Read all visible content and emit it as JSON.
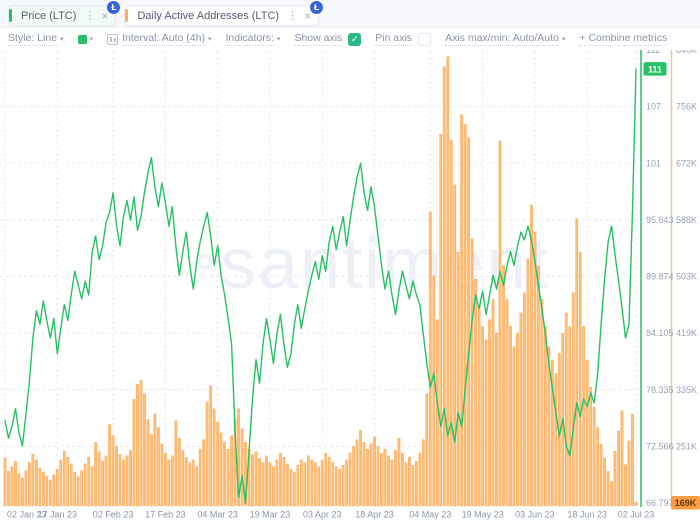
{
  "colors": {
    "green": "#26c164",
    "orangeAccent": "#ffa95c",
    "blueBadge": "#3a63d8",
    "checkbox": "#2bb886",
    "bar": "#ffbd72",
    "barEdge": "#f3a45c",
    "orangeAxisLine": "#f7c489",
    "greenAxisLine": "#26c164",
    "greenBadge": "#26c164",
    "orangeBadge": "#ff9d45",
    "orangeBadgeText": "#5b3a10",
    "axisText": "#98a1b3",
    "xText": "#8b95a8",
    "grid": "#e7ebf2",
    "watermark": "#edf0f6"
  },
  "tabs": [
    {
      "label": "Price (LTC)",
      "menu_icon": "⋮",
      "close_icon": "×",
      "logo": "Ł"
    },
    {
      "label": "Daily Active Addresses (LTC)",
      "menu_icon": "⋮",
      "close_icon": "×",
      "logo": "Ł"
    }
  ],
  "toolbar": {
    "style_label": "Style: Line",
    "interval_label": "Interval: Auto (4h)",
    "indicators_label": "Indicators:",
    "show_axis_label": "Show axis",
    "pin_axis_label": "Pin axis",
    "axis_maxmin_label": "Axis max/min: Auto/Auto",
    "combine_metrics_label": "+ Combine metrics",
    "caret": "▾",
    "check_icon": "✓"
  },
  "watermark": "santiment",
  "chart_data": {
    "type": "line+bar",
    "x_start": "02 Jan 23",
    "x_end": "02 Jul 23",
    "days": 182,
    "x_labels": [
      {
        "day": 0,
        "label": "02 Jan 23"
      },
      {
        "day": 15,
        "label": "17 Jan 23"
      },
      {
        "day": 31,
        "label": "02 Feb 23"
      },
      {
        "day": 46,
        "label": "17 Feb 23"
      },
      {
        "day": 61,
        "label": "04 Mar 23"
      },
      {
        "day": 76,
        "label": "19 Mar 23"
      },
      {
        "day": 91,
        "label": "03 Apr 23"
      },
      {
        "day": 106,
        "label": "18 Apr 23"
      },
      {
        "day": 122,
        "label": "04 May 23"
      },
      {
        "day": 137,
        "label": "19 May 23"
      },
      {
        "day": 152,
        "label": "03 Jun 23"
      },
      {
        "day": 167,
        "label": "18 Jun 23"
      },
      {
        "day": 181,
        "label": "02 Jul 23"
      }
    ],
    "series": [
      {
        "name": "Price (LTC)",
        "type": "line",
        "axis": {
          "max": 112.951,
          "min": 66.797,
          "labels": [
            "112",
            "107",
            "101",
            "95.643",
            "89.874",
            "84.105",
            "78.335",
            "72.566",
            "66.797"
          ],
          "last_value_badge": "111",
          "last_value": 111
        },
        "values": [
          75.2,
          73.4,
          74.6,
          76.4,
          74.0,
          72.6,
          75.8,
          79.2,
          83.6,
          86.4,
          85.0,
          87.4,
          85.4,
          83.6,
          85.6,
          82.0,
          84.6,
          87.0,
          85.4,
          88.0,
          90.4,
          89.0,
          87.6,
          89.4,
          88.0,
          92.4,
          94.0,
          91.6,
          93.0,
          95.4,
          96.4,
          98.4,
          95.0,
          93.0,
          96.0,
          97.6,
          95.6,
          98.0,
          94.6,
          96.0,
          98.4,
          100.4,
          102.0,
          99.0,
          97.0,
          99.4,
          97.4,
          95.0,
          97.0,
          93.0,
          90.0,
          92.4,
          94.4,
          91.0,
          88.6,
          91.4,
          93.4,
          95.0,
          96.4,
          94.0,
          91.0,
          93.0,
          90.0,
          88.0,
          85.6,
          83.0,
          74.0,
          67.4,
          69.6,
          66.8,
          72.0,
          77.4,
          81.4,
          79.0,
          83.0,
          85.6,
          83.4,
          81.0,
          84.0,
          86.0,
          83.0,
          80.6,
          82.0,
          85.0,
          87.0,
          84.6,
          86.6,
          88.4,
          90.0,
          91.4,
          89.6,
          92.0,
          90.4,
          93.4,
          95.0,
          92.6,
          94.4,
          96.0,
          93.0,
          95.6,
          98.0,
          100.0,
          101.4,
          98.4,
          96.6,
          99.0,
          97.0,
          94.0,
          91.0,
          88.6,
          90.4,
          88.0,
          86.0,
          88.4,
          90.4,
          89.0,
          87.6,
          89.4,
          88.0,
          87.0,
          84.0,
          81.0,
          78.6,
          80.0,
          77.0,
          74.6,
          76.4,
          73.6,
          75.0,
          73.0,
          76.0,
          74.6,
          78.4,
          82.0,
          85.4,
          88.0,
          86.6,
          88.4,
          86.0,
          88.0,
          90.0,
          88.6,
          90.4,
          89.0,
          91.0,
          92.4,
          91.0,
          93.0,
          94.4,
          93.6,
          95.0,
          93.6,
          91.4,
          89.0,
          86.6,
          84.0,
          81.0,
          78.6,
          76.0,
          73.6,
          75.4,
          72.6,
          71.6,
          74.4,
          77.0,
          75.6,
          77.4,
          76.6,
          78.0,
          77.0,
          80.0,
          85.0,
          89.6,
          93.4,
          95.0,
          92.0,
          89.4,
          86.6,
          83.6,
          85.0,
          96.6,
          111.0
        ]
      },
      {
        "name": "Daily Active Addresses (LTC)",
        "type": "bar",
        "unit": "K",
        "axis": {
          "max": 840,
          "min": 168,
          "labels": [
            "840K",
            "756K",
            "672K",
            "588K",
            "503K",
            "419K",
            "335K",
            "251K"
          ],
          "last_value_badge": "169K",
          "last_value": 169
        },
        "values": [
          235,
          215,
          222,
          230,
          212,
          205,
          216,
          228,
          240,
          232,
          220,
          214,
          208,
          202,
          210,
          218,
          232,
          245,
          236,
          226,
          214,
          207,
          216,
          226,
          236,
          222,
          258,
          244,
          230,
          238,
          284,
          268,
          252,
          240,
          232,
          238,
          246,
          322,
          344,
          350,
          330,
          292,
          270,
          300,
          280,
          256,
          242,
          232,
          238,
          290,
          264,
          246,
          236,
          228,
          232,
          222,
          248,
          262,
          318,
          342,
          308,
          288,
          272,
          258,
          248,
          268,
          292,
          308,
          278,
          258,
          248,
          240,
          244,
          234,
          228,
          238,
          228,
          222,
          232,
          242,
          236,
          226,
          218,
          214,
          224,
          232,
          228,
          238,
          232,
          228,
          222,
          232,
          242,
          236,
          228,
          222,
          218,
          224,
          232,
          242,
          252,
          262,
          276,
          258,
          248,
          256,
          266,
          252,
          242,
          248,
          238,
          232,
          246,
          264,
          242,
          228,
          236,
          224,
          230,
          242,
          262,
          330,
          600,
          505,
          440,
          715,
          815,
          830,
          706,
          640,
          540,
          744,
          730,
          710,
          560,
          500,
          460,
          430,
          410,
          440,
          470,
          420,
          705,
          520,
          470,
          430,
          400,
          420,
          450,
          480,
          530,
          610,
          570,
          520,
          470,
          430,
          400,
          380,
          360,
          390,
          420,
          450,
          430,
          480,
          590,
          540,
          430,
          380,
          340,
          310,
          280,
          255,
          235,
          215,
          200,
          245,
          275,
          305,
          225,
          260,
          300,
          169
        ]
      }
    ]
  }
}
